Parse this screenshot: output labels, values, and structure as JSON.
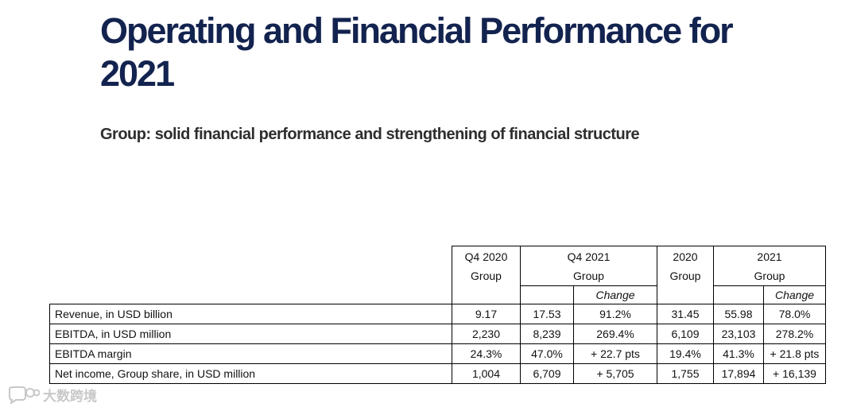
{
  "title": "Operating and Financial Performance for 2021",
  "subtitle": "Group: solid financial performance and strengthening of financial structure",
  "table": {
    "headers": {
      "q4_2020": "Q4 2020",
      "q4_2020_sub": "Group",
      "q4_2021": "Q4 2021",
      "q4_2021_sub": "Group",
      "q4_2021_change": "Change",
      "y2020": "2020",
      "y2020_sub": "Group",
      "y2021": "2021",
      "y2021_sub": "Group",
      "y2021_change": "Change"
    },
    "rows": [
      {
        "label": "Revenue, in USD billion",
        "q4_2020": "9.17",
        "q4_2021": "17.53",
        "q4_change": "91.2%",
        "y2020": "31.45",
        "y2021": "55.98",
        "y_change": "78.0%"
      },
      {
        "label": "EBITDA, in USD million",
        "q4_2020": "2,230",
        "q4_2021": "8,239",
        "q4_change": "269.4%",
        "y2020": "6,109",
        "y2021": "23,103",
        "y_change": "278.2%"
      },
      {
        "label": "EBITDA margin",
        "q4_2020": "24.3%",
        "q4_2021": "47.0%",
        "q4_change": "+ 22.7 pts",
        "y2020": "19.4%",
        "y2021": "41.3%",
        "y_change": "+ 21.8 pts"
      },
      {
        "label": "Net income, Group share, in USD million",
        "q4_2020": "1,004",
        "q4_2021": "6,709",
        "q4_change": "+ 5,705",
        "y2020": "1,755",
        "y2021": "17,894",
        "y_change": "+ 16,139"
      }
    ]
  },
  "watermark": {
    "text": "大数跨境",
    "icon": "chat-bubble-logo-icon"
  }
}
